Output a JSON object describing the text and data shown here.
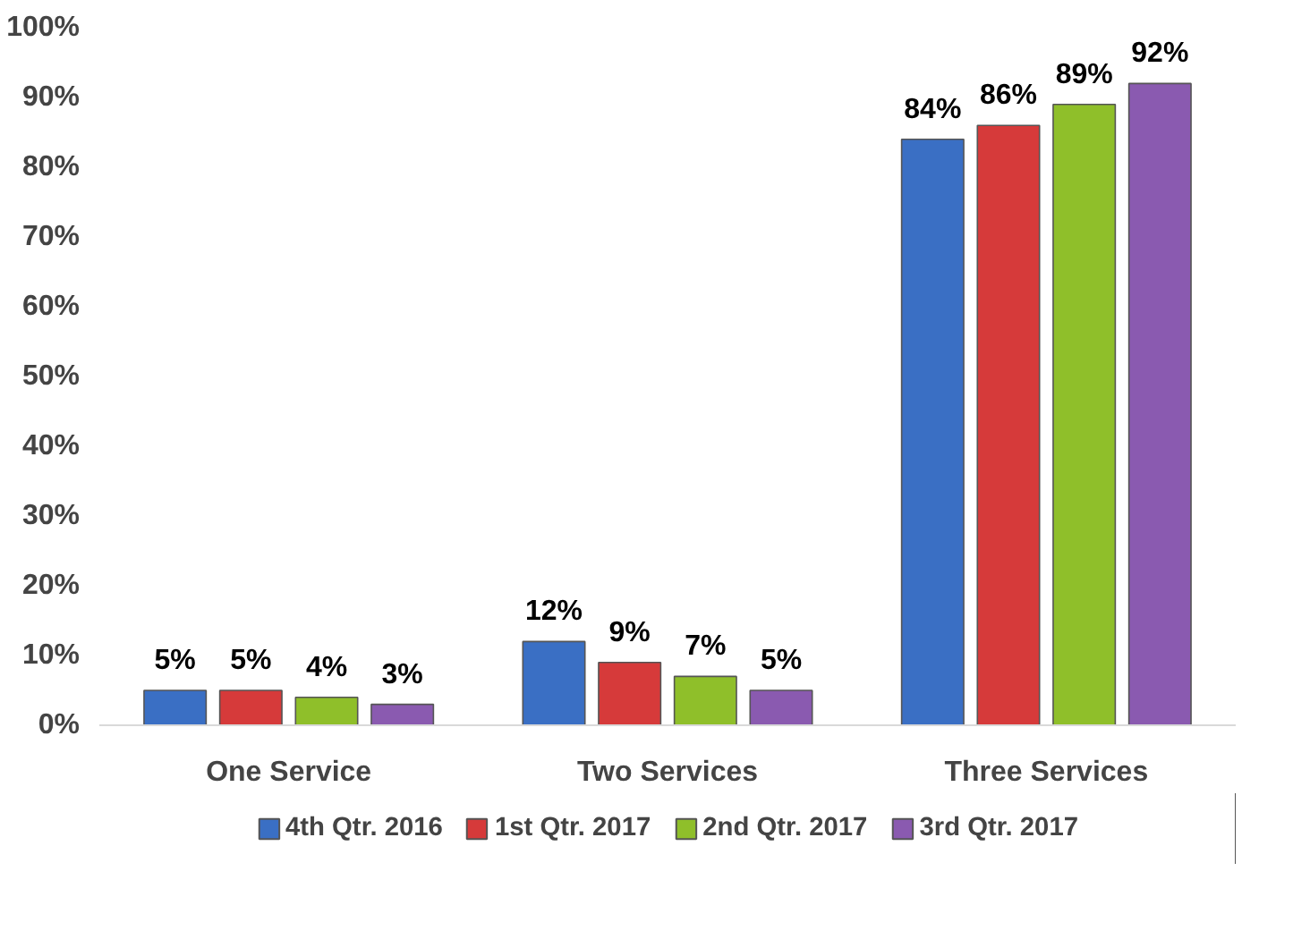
{
  "chart_data": {
    "type": "bar",
    "categories": [
      "One Service",
      "Two Services",
      "Three Services"
    ],
    "series": [
      {
        "name": "4th Qtr. 2016",
        "color": "#3a6fc4",
        "values": [
          5,
          12,
          84
        ],
        "value_labels": [
          "5%",
          "12%",
          "84%"
        ]
      },
      {
        "name": "1st Qtr. 2017",
        "color": "#d63a3a",
        "values": [
          5,
          9,
          86
        ],
        "value_labels": [
          "5%",
          "9%",
          "86%"
        ]
      },
      {
        "name": "2nd Qtr. 2017",
        "color": "#8fbf2a",
        "values": [
          4,
          7,
          89
        ],
        "value_labels": [
          "4%",
          "7%",
          "89%"
        ]
      },
      {
        "name": "3rd Qtr. 2017",
        "color": "#8a5ab0",
        "values": [
          3,
          5,
          92
        ],
        "value_labels": [
          "3%",
          "5%",
          "92%"
        ]
      }
    ],
    "ylim": [
      0,
      100
    ],
    "yticks": [
      {
        "value": 0,
        "label": "0%"
      },
      {
        "value": 10,
        "label": "10%"
      },
      {
        "value": 20,
        "label": "20%"
      },
      {
        "value": 30,
        "label": "30%"
      },
      {
        "value": 40,
        "label": "40%"
      },
      {
        "value": 50,
        "label": "50%"
      },
      {
        "value": 60,
        "label": "60%"
      },
      {
        "value": 70,
        "label": "70%"
      },
      {
        "value": 80,
        "label": "80%"
      },
      {
        "value": 90,
        "label": "90%"
      },
      {
        "value": 100,
        "label": "100%"
      }
    ],
    "grid": false,
    "legend": "bottom"
  }
}
